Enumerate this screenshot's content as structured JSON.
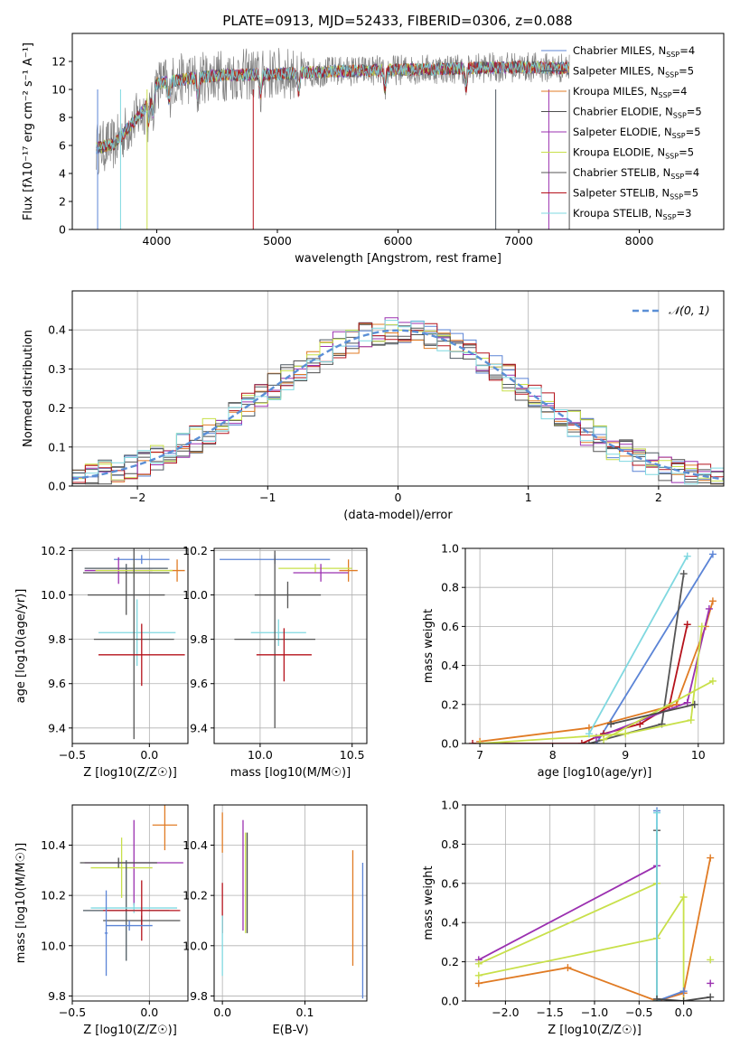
{
  "figure": {
    "title": "PLATE=0913, MJD=52433, FIBERID=0306, z=0.088"
  },
  "legend_items": [
    {
      "label": "Chabrier MILES, N",
      "sub": "SSP",
      "suffix": "=4",
      "color": "#5b84d6"
    },
    {
      "label": "Salpeter MILES, N",
      "sub": "SSP",
      "suffix": "=5",
      "color": "#4d5860"
    },
    {
      "label": "Kroupa MILES, N",
      "sub": "SSP",
      "suffix": "=4",
      "color": "#e07b24"
    },
    {
      "label": "Chabrier ELODIE, N",
      "sub": "SSP",
      "suffix": "=5",
      "color": "#4d4d4d"
    },
    {
      "label": "Salpeter ELODIE, N",
      "sub": "SSP",
      "suffix": "=5",
      "color": "#9b30b0"
    },
    {
      "label": "Kroupa ELODIE, N",
      "sub": "SSP",
      "suffix": "=5",
      "color": "#c8e04a"
    },
    {
      "label": "Chabrier STELIB, N",
      "sub": "SSP",
      "suffix": "=4",
      "color": "#555555"
    },
    {
      "label": "Salpeter STELIB, N",
      "sub": "SSP",
      "suffix": "=5",
      "color": "#b5121b"
    },
    {
      "label": "Kroupa STELIB, N",
      "sub": "SSP",
      "suffix": "=3",
      "color": "#7fd8e0"
    }
  ],
  "chart_data": [
    {
      "type": "line",
      "title": "PLATE=0913, MJD=52433, FIBERID=0306, z=0.088",
      "xlabel": "wavelength [Angstrom, rest frame]",
      "ylabel": "Flux [fλ10⁻¹⁷ erg cm⁻² s⁻¹ A⁻¹]",
      "xlim": [
        3300,
        8700
      ],
      "ylim": [
        0,
        14
      ],
      "xticks": [
        4000,
        5000,
        6000,
        7000,
        8000
      ],
      "yticks": [
        0,
        2,
        4,
        6,
        8,
        10,
        12
      ],
      "continuum": {
        "x": [
          3500,
          3650,
          3800,
          3900,
          3950,
          4000,
          4200,
          4500,
          5000,
          5500,
          6000,
          6500,
          7000,
          7500
        ],
        "y": [
          5.8,
          6.1,
          7.6,
          8.6,
          9.4,
          10.4,
          10.7,
          11.0,
          11.1,
          11.3,
          11.4,
          11.5,
          11.6,
          11.5
        ]
      },
      "legend": "top-right"
    },
    {
      "type": "histogram",
      "xlabel": "(data-model)/error",
      "ylabel": "Normed distribution",
      "xlim": [
        -2.5,
        2.5
      ],
      "ylim": [
        0,
        0.5
      ],
      "xticks": [
        -2,
        -1,
        0,
        1,
        2
      ],
      "yticks": [
        0.0,
        0.1,
        0.2,
        0.3,
        0.4
      ],
      "reference_curve": {
        "name": "𝒩(0, 1)",
        "mean": 0,
        "sigma": 1,
        "style": "dashed"
      },
      "bin_width": 0.1,
      "legend": "top-right"
    },
    {
      "type": "scatter",
      "xlabel": "Z [log10(Z/Z☉)]",
      "ylabel": "age [log10(age/yr)]",
      "xlim": [
        -0.5,
        0.25
      ],
      "ylim": [
        9.33,
        10.21
      ],
      "xticks": [
        -0.5,
        0.0
      ],
      "yticks": [
        9.4,
        9.6,
        9.8,
        10.0,
        10.2
      ],
      "points": [
        {
          "x": -0.05,
          "y": 10.16,
          "xerr": 0.18,
          "yerr": 0.02,
          "s": 0
        },
        {
          "x": -0.15,
          "y": 10.12,
          "xerr": 0.27,
          "yerr": 0.02,
          "s": 1
        },
        {
          "x": 0.18,
          "y": 10.11,
          "xerr": 0.05,
          "yerr": 0.05,
          "s": 2
        },
        {
          "x": -0.15,
          "y": 10.1,
          "xerr": 0.28,
          "yerr": 0.01,
          "s": 3
        },
        {
          "x": -0.2,
          "y": 10.11,
          "xerr": 0.22,
          "yerr": 0.06,
          "s": 4
        },
        {
          "x": -0.1,
          "y": 10.11,
          "xerr": 0.25,
          "yerr": 0.03,
          "s": 5
        },
        {
          "x": -0.15,
          "y": 10.0,
          "xerr": 0.25,
          "yerr": 0.09,
          "s": 6
        },
        {
          "x": -0.08,
          "y": 9.83,
          "xerr": 0.25,
          "yerr": 0.15,
          "s": 8
        },
        {
          "x": -0.1,
          "y": 9.8,
          "xerr": 0.26,
          "yerr": 0.45,
          "s": 6
        },
        {
          "x": -0.05,
          "y": 9.73,
          "xerr": 0.28,
          "yerr": 0.14,
          "s": 7
        }
      ]
    },
    {
      "type": "scatter",
      "xlabel": "mass [log10(M/M☉)]",
      "ylabel": "",
      "xlim": [
        9.75,
        10.58
      ],
      "ylim": [
        9.33,
        10.21
      ],
      "xticks": [
        10.0,
        10.5
      ],
      "yticks": [
        9.4,
        9.6,
        9.8,
        10.0,
        10.2
      ],
      "points": [
        {
          "x": 10.08,
          "y": 10.16,
          "xerr": 0.3,
          "yerr": 0.02,
          "s": 0
        },
        {
          "x": 10.48,
          "y": 10.11,
          "xerr": 0.05,
          "yerr": 0.05,
          "s": 2
        },
        {
          "x": 10.3,
          "y": 10.12,
          "xerr": 0.2,
          "yerr": 0.02,
          "s": 5
        },
        {
          "x": 10.33,
          "y": 10.1,
          "xerr": 0.15,
          "yerr": 0.04,
          "s": 4
        },
        {
          "x": 10.15,
          "y": 10.0,
          "xerr": 0.18,
          "yerr": 0.06,
          "s": 6
        },
        {
          "x": 10.1,
          "y": 9.83,
          "xerr": 0.15,
          "yerr": 0.06,
          "s": 8
        },
        {
          "x": 10.08,
          "y": 9.8,
          "xerr": 0.22,
          "yerr": 0.4,
          "s": 6
        },
        {
          "x": 10.13,
          "y": 9.73,
          "xerr": 0.15,
          "yerr": 0.12,
          "s": 7
        }
      ]
    },
    {
      "type": "line",
      "xlabel": "age [log10(age/yr)]",
      "ylabel": "mass weight",
      "xlim": [
        6.8,
        10.35
      ],
      "ylim": [
        0,
        1.0
      ],
      "xticks": [
        7,
        8,
        9,
        10
      ],
      "yticks": [
        0.0,
        0.2,
        0.4,
        0.6,
        0.8,
        1.0
      ],
      "series": [
        {
          "x": [
            8.6,
            10.2
          ],
          "y": [
            0.0,
            0.97
          ],
          "s": 0
        },
        {
          "x": [
            8.5,
            9.5,
            9.8
          ],
          "y": [
            0.0,
            0.1,
            0.87
          ],
          "s": 6
        },
        {
          "x": [
            6.9,
            8.4,
            8.7,
            9.2,
            9.6,
            9.85
          ],
          "y": [
            0.0,
            0.0,
            0.05,
            0.1,
            0.19,
            0.61
          ],
          "s": 7
        },
        {
          "x": [
            7.0,
            8.5,
            9.7,
            10.1,
            10.2
          ],
          "y": [
            0.01,
            0.08,
            0.2,
            0.6,
            0.73
          ],
          "s": 2
        },
        {
          "x": [
            8.6,
            9.85,
            10.15
          ],
          "y": [
            0.03,
            0.21,
            0.69
          ],
          "s": 4
        },
        {
          "x": [
            7.0,
            9.0,
            9.9,
            10.05
          ],
          "y": [
            0.0,
            0.05,
            0.12,
            0.6
          ],
          "s": 5
        },
        {
          "x": [
            8.7,
            10.2
          ],
          "y": [
            0.02,
            0.32
          ],
          "s": 5
        },
        {
          "x": [
            8.5,
            9.85
          ],
          "y": [
            0.05,
            0.96
          ],
          "s": 8
        },
        {
          "x": [
            8.8,
            9.95
          ],
          "y": [
            0.1,
            0.2
          ],
          "s": 3
        }
      ]
    },
    {
      "type": "scatter",
      "xlabel": "Z [log10(Z/Z☉)]",
      "ylabel": "mass [log10(M/M☉)]",
      "xlim": [
        -0.5,
        0.25
      ],
      "ylim": [
        9.78,
        10.56
      ],
      "xticks": [
        -0.5,
        0.0
      ],
      "yticks": [
        9.8,
        10.0,
        10.2,
        10.4
      ],
      "points": [
        {
          "x": 0.1,
          "y": 10.48,
          "xerr": 0.08,
          "yerr": 0.1,
          "s": 2
        },
        {
          "x": -0.1,
          "y": 10.33,
          "xerr": 0.32,
          "yerr": 0.17,
          "s": 4
        },
        {
          "x": -0.18,
          "y": 10.31,
          "xerr": 0.2,
          "yerr": 0.12,
          "s": 5
        },
        {
          "x": -0.2,
          "y": 10.33,
          "xerr": 0.25,
          "yerr": 0.02,
          "s": 3
        },
        {
          "x": -0.15,
          "y": 10.14,
          "xerr": 0.28,
          "yerr": 0.2,
          "s": 1
        },
        {
          "x": -0.1,
          "y": 10.15,
          "xerr": 0.28,
          "yerr": 0.02,
          "s": 8
        },
        {
          "x": -0.05,
          "y": 10.1,
          "xerr": 0.25,
          "yerr": 0.02,
          "s": 6
        },
        {
          "x": -0.05,
          "y": 10.14,
          "xerr": 0.25,
          "yerr": 0.12,
          "s": 7
        },
        {
          "x": -0.13,
          "y": 10.08,
          "xerr": 0.15,
          "yerr": 0.02,
          "s": 0
        },
        {
          "x": -0.28,
          "y": 10.05,
          "xerr": 0.01,
          "yerr": 0.17,
          "s": 0
        }
      ]
    },
    {
      "type": "scatter",
      "xlabel": "E(B-V)",
      "ylabel": "",
      "xlim": [
        -0.01,
        0.175
      ],
      "ylim": [
        9.78,
        10.56
      ],
      "xticks": [
        0.0,
        0.1
      ],
      "yticks": [
        9.8,
        10.0,
        10.2,
        10.4
      ],
      "points": [
        {
          "x": 0.0,
          "y": 10.45,
          "yerr": 0.08,
          "s": 2
        },
        {
          "x": 0.0,
          "y": 10.15,
          "yerr": 0.1,
          "s": 7
        },
        {
          "x": 0.0,
          "y": 10.0,
          "yerr": 0.12,
          "s": 8
        },
        {
          "x": 0.025,
          "y": 10.28,
          "yerr": 0.22,
          "s": 4
        },
        {
          "x": 0.028,
          "y": 10.25,
          "yerr": 0.2,
          "s": 5
        },
        {
          "x": 0.03,
          "y": 10.25,
          "yerr": 0.2,
          "s": 3
        },
        {
          "x": 0.158,
          "y": 10.15,
          "yerr": 0.23,
          "s": 2
        },
        {
          "x": 0.17,
          "y": 10.06,
          "yerr": 0.27,
          "s": 0
        }
      ]
    },
    {
      "type": "line",
      "xlabel": "Z [log10(Z/Z☉)]",
      "ylabel": "mass weight",
      "xlim": [
        -2.45,
        0.45
      ],
      "ylim": [
        0,
        1.0
      ],
      "xticks": [
        -2.0,
        -1.5,
        -1.0,
        -0.5,
        0.0
      ],
      "yticks": [
        0.0,
        0.2,
        0.4,
        0.6,
        0.8,
        1.0
      ],
      "series": [
        {
          "x": [
            -2.3,
            -0.3,
            -0.3,
            0.0
          ],
          "y": [
            0.21,
            0.69,
            0.0,
            0.04
          ],
          "s": 4
        },
        {
          "x": [
            -2.3,
            -0.3,
            -0.3
          ],
          "y": [
            0.19,
            0.6,
            0.0
          ],
          "s": 5
        },
        {
          "x": [
            -2.3,
            -0.3,
            0.0,
            0.0
          ],
          "y": [
            0.13,
            0.32,
            0.53,
            0.0
          ],
          "s": 5
        },
        {
          "x": [
            -2.3,
            -1.3,
            -0.3,
            0.0,
            0.3
          ],
          "y": [
            0.09,
            0.17,
            0.0,
            0.04,
            0.73
          ],
          "s": 2
        },
        {
          "x": [
            -0.3,
            -0.3,
            0.0
          ],
          "y": [
            0.97,
            0.0,
            0.05
          ],
          "s": 0
        },
        {
          "x": [
            -0.3,
            -0.3
          ],
          "y": [
            0.87,
            0.0
          ],
          "s": 6
        },
        {
          "x": [
            -0.3,
            -0.3
          ],
          "y": [
            0.96,
            0.0
          ],
          "s": 8
        },
        {
          "x": [
            -0.3,
            0.0,
            0.3
          ],
          "y": [
            0.01,
            0.0,
            0.02
          ],
          "s": 3
        },
        {
          "x": [
            0.3
          ],
          "y": [
            0.21
          ],
          "s": 5
        },
        {
          "x": [
            0.3
          ],
          "y": [
            0.09
          ],
          "s": 4
        }
      ]
    }
  ]
}
